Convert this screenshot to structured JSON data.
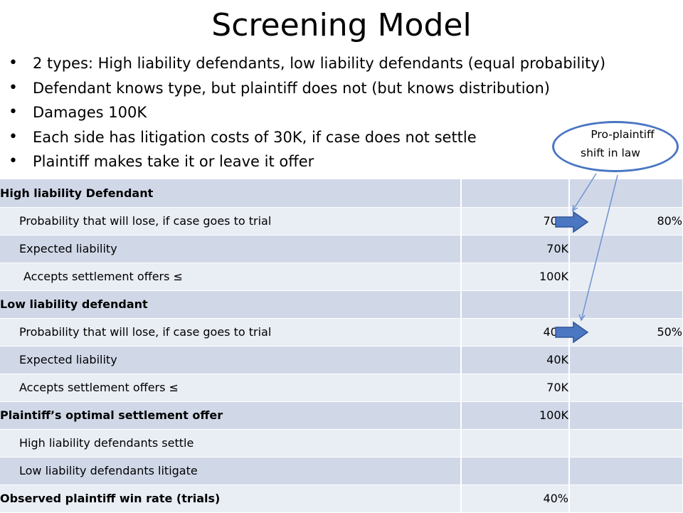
{
  "title": "Screening Model",
  "bullets": [
    "2 types: High liability defendants, low liability defendants (equal probability)",
    "Defendant knows type, but plaintiff does not (but knows distribution)",
    "Damages 100K",
    "Each side has litigation costs of 30K, if case does not settle",
    "Plaintiff makes take it or leave it offer"
  ],
  "callout": {
    "line1": "Pro-plaintiff",
    "line2": "shift in law"
  },
  "table": {
    "rows": [
      {
        "label": "High liability Defendant",
        "value": "",
        "new_value": ""
      },
      {
        "label": "Probability that will lose, if case goes to trial",
        "value": "70%",
        "new_value": "80%"
      },
      {
        "label": "Expected liability",
        "value": "70K",
        "new_value": ""
      },
      {
        "label": "Accepts settlement offers ≤",
        "value": "100K",
        "new_value": ""
      },
      {
        "label": "Low liability defendant",
        "value": "",
        "new_value": ""
      },
      {
        "label": "Probability that will lose, if case goes to trial",
        "value": "40%",
        "new_value": "50%"
      },
      {
        "label": "Expected liability",
        "value": "40K",
        "new_value": ""
      },
      {
        "label": "Accepts settlement offers ≤",
        "value": "70K",
        "new_value": ""
      },
      {
        "label": "Plaintiff’s optimal settlement offer",
        "value": "100K",
        "new_value": ""
      },
      {
        "label": "High liability defendants settle",
        "value": "",
        "new_value": ""
      },
      {
        "label": "Low liability defendants litigate",
        "value": "",
        "new_value": ""
      },
      {
        "label": "Observed plaintiff win rate (trials)",
        "value": "40%",
        "new_value": ""
      }
    ]
  },
  "colors": {
    "row_dark": "#d0d8e8",
    "row_light": "#e9edf4",
    "arrow": "#4a76c2"
  }
}
